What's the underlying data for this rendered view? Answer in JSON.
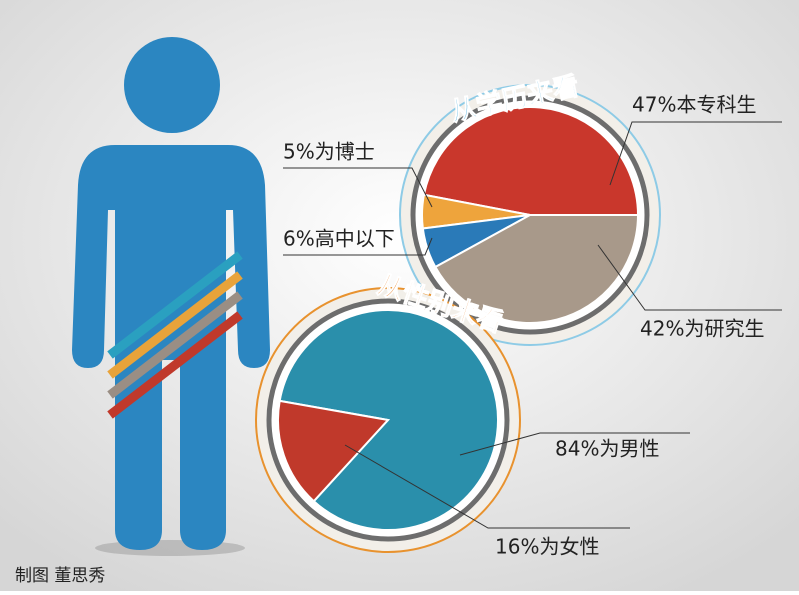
{
  "chart_data": [
    {
      "type": "pie",
      "title": "从学历来看",
      "title_color": "#2a9fd6",
      "values": [
        47,
        5,
        6,
        42
      ],
      "value_labels": [
        "47%本专科生",
        "5%为博士",
        "6%高中以下",
        "42%为研究生"
      ],
      "colors": [
        "#c9372c",
        "#eea43c",
        "#2a7ab8",
        "#a8998a"
      ]
    },
    {
      "type": "pie",
      "title": "从性别来看",
      "title_color": "#e8822a",
      "values": [
        84,
        16
      ],
      "value_labels": [
        "84%为男性",
        "16%为女性"
      ],
      "colors": [
        "#2a8fab",
        "#c0392b"
      ]
    }
  ],
  "credit": "制图 董思秀"
}
